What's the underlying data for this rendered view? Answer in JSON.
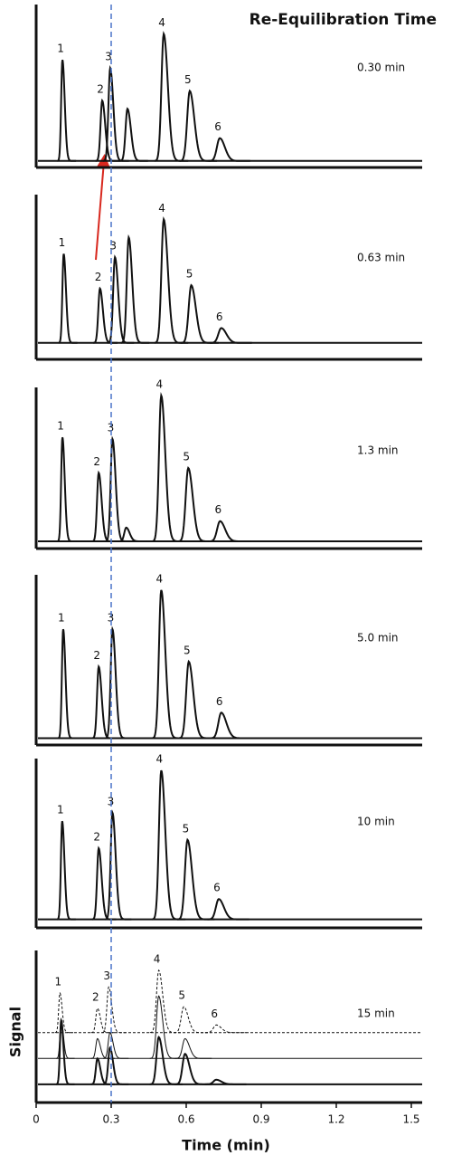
{
  "chart_data": {
    "type": "line",
    "title": "Re-Equilibration Time",
    "x_label": "Time (min)",
    "y_label": "Signal",
    "xlim": [
      0,
      1.5
    ],
    "xticks": [
      0,
      0.3,
      0.6,
      0.9,
      1.2,
      1.5
    ],
    "reference_line": {
      "x": 0.3,
      "color": "#4a74c9"
    },
    "panels": [
      {
        "label": "0.30 min",
        "ylim": [
          0,
          100
        ],
        "series": [
          {
            "line_style": "solid",
            "line_width": 2,
            "color": "#111111",
            "baseline": 4,
            "peaks": [
              {
                "label": "1",
                "x": 0.105,
                "y": 66
              },
              {
                "label": "2",
                "x": 0.264,
                "y": 41
              },
              {
                "label": "3",
                "x": 0.296,
                "y": 61
              },
              {
                "label": null,
                "x": 0.365,
                "y": 36
              },
              {
                "label": "4",
                "x": 0.51,
                "y": 82
              },
              {
                "label": "5",
                "x": 0.614,
                "y": 47
              },
              {
                "label": "6",
                "x": 0.734,
                "y": 18
              }
            ]
          }
        ]
      },
      {
        "label": "0.63 min",
        "ylim": [
          0,
          100
        ],
        "series": [
          {
            "line_style": "solid",
            "line_width": 2,
            "color": "#111111",
            "baseline": 10,
            "peaks": [
              {
                "label": "1",
                "x": 0.11,
                "y": 64
              },
              {
                "label": "2",
                "x": 0.255,
                "y": 43
              },
              {
                "label": "3",
                "x": 0.315,
                "y": 62
              },
              {
                "label": null,
                "x": 0.37,
                "y": 74
              },
              {
                "label": "4",
                "x": 0.51,
                "y": 85
              },
              {
                "label": "5",
                "x": 0.62,
                "y": 45
              },
              {
                "label": "6",
                "x": 0.74,
                "y": 19
              }
            ]
          }
        ]
      },
      {
        "label": "1.3 min",
        "ylim": [
          0,
          100
        ],
        "series": [
          {
            "line_style": "solid",
            "line_width": 2,
            "color": "#111111",
            "baseline": 4.5,
            "peaks": [
              {
                "label": "1",
                "x": 0.105,
                "y": 69
              },
              {
                "label": "2",
                "x": 0.25,
                "y": 47
              },
              {
                "label": "3",
                "x": 0.305,
                "y": 68
              },
              {
                "label": null,
                "x": 0.36,
                "y": 13
              },
              {
                "label": "4",
                "x": 0.5,
                "y": 95
              },
              {
                "label": "5",
                "x": 0.608,
                "y": 50
              },
              {
                "label": "6",
                "x": 0.735,
                "y": 17
              }
            ]
          }
        ]
      },
      {
        "label": "5.0 min",
        "ylim": [
          0,
          100
        ],
        "series": [
          {
            "line_style": "solid",
            "line_width": 2,
            "color": "#111111",
            "baseline": 4,
            "peaks": [
              {
                "label": "1",
                "x": 0.108,
                "y": 68
              },
              {
                "label": "2",
                "x": 0.25,
                "y": 46
              },
              {
                "label": "3",
                "x": 0.305,
                "y": 68
              },
              {
                "label": "4",
                "x": 0.5,
                "y": 91
              },
              {
                "label": "5",
                "x": 0.61,
                "y": 49
              },
              {
                "label": "6",
                "x": 0.74,
                "y": 19
              }
            ]
          }
        ]
      },
      {
        "label": "10 min",
        "ylim": [
          0,
          100
        ],
        "series": [
          {
            "line_style": "solid",
            "line_width": 2,
            "color": "#111111",
            "baseline": 5,
            "peaks": [
              {
                "label": "1",
                "x": 0.104,
                "y": 63
              },
              {
                "label": "2",
                "x": 0.25,
                "y": 47
              },
              {
                "label": "3",
                "x": 0.305,
                "y": 68
              },
              {
                "label": "4",
                "x": 0.5,
                "y": 93
              },
              {
                "label": "5",
                "x": 0.605,
                "y": 52
              },
              {
                "label": "6",
                "x": 0.73,
                "y": 17
              }
            ]
          }
        ]
      },
      {
        "label": "15 min",
        "ylim": [
          0,
          100
        ],
        "series": [
          {
            "line_style": "dashed",
            "line_width": 1,
            "color": "#111111",
            "baseline": 46,
            "peaks": [
              {
                "label": "1",
                "x": 0.095,
                "y": 72
              },
              {
                "label": "2",
                "x": 0.245,
                "y": 62
              },
              {
                "label": "3",
                "x": 0.29,
                "y": 76
              },
              {
                "label": "4",
                "x": 0.49,
                "y": 87
              },
              {
                "label": "5",
                "x": 0.59,
                "y": 63
              },
              {
                "label": "6",
                "x": 0.72,
                "y": 51
              }
            ]
          },
          {
            "line_style": "solid",
            "line_width": 1,
            "color": "#111111",
            "baseline": 29,
            "peaks": [
              {
                "label": null,
                "x": 0.1,
                "y": 54
              },
              {
                "label": null,
                "x": 0.245,
                "y": 42
              },
              {
                "label": null,
                "x": 0.295,
                "y": 46
              },
              {
                "label": null,
                "x": 0.49,
                "y": 70
              },
              {
                "label": null,
                "x": 0.595,
                "y": 42
              }
            ]
          },
          {
            "line_style": "solid",
            "line_width": 2,
            "color": "#111111",
            "baseline": 12,
            "peaks": [
              {
                "label": null,
                "x": 0.1,
                "y": 54
              },
              {
                "label": null,
                "x": 0.245,
                "y": 29
              },
              {
                "label": null,
                "x": 0.295,
                "y": 36
              },
              {
                "label": null,
                "x": 0.49,
                "y": 43
              },
              {
                "label": null,
                "x": 0.595,
                "y": 32
              },
              {
                "label": null,
                "x": 0.72,
                "y": 15
              }
            ]
          }
        ]
      }
    ]
  }
}
